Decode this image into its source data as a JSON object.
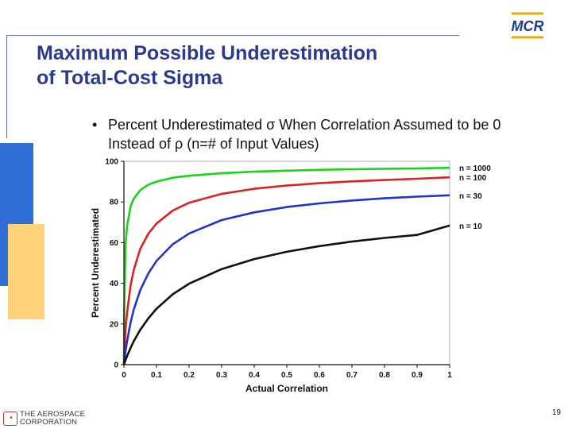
{
  "slide": {
    "title_line1": "Maximum Possible Underestimation",
    "title_line2": "of Total-Cost Sigma",
    "bullet_symbol": "•",
    "bullet_text": "Percent Underestimated σ When Correlation Assumed to be 0 Instead of ρ (n=# of Input Values)",
    "logo_text": "MCR",
    "footer_org_line1": "THE AEROSPACE",
    "footer_org_line2": "CORPORATION",
    "page_number": "19"
  },
  "colors": {
    "title": "#2d3a8c",
    "accent_blue": "#2f6fd6",
    "accent_yellow": "#ffd27a"
  },
  "chart_data": {
    "type": "line",
    "xlabel": "Actual Correlation",
    "ylabel": "Percent Underestimated",
    "xlim": [
      0,
      1
    ],
    "ylim": [
      0,
      100
    ],
    "x_ticks": [
      "0",
      "0.1",
      "0.2",
      "0.3",
      "0.4",
      "0.5",
      "0.6",
      "0.7",
      "0.8",
      "0.9",
      "1"
    ],
    "y_ticks": [
      "0",
      "20",
      "40",
      "60",
      "80",
      "100"
    ],
    "x": [
      0,
      0.001,
      0.005,
      0.01,
      0.02,
      0.03,
      0.05,
      0.075,
      0.1,
      0.15,
      0.2,
      0.3,
      0.4,
      0.5,
      0.6,
      0.7,
      0.8,
      0.9,
      1.0
    ],
    "series": [
      {
        "name": "n = 1000",
        "color": "#19d419",
        "values": [
          0,
          26.9,
          59.1,
          68.4,
          77.6,
          81.6,
          85.8,
          88.5,
          90.0,
          91.9,
          92.9,
          94.1,
          94.9,
          95.4,
          95.8,
          96.1,
          96.3,
          96.5,
          96.8
        ]
      },
      {
        "name": "n = 100",
        "color": "#e02020",
        "values": [
          0,
          4.4,
          17.5,
          26.0,
          38.5,
          46.5,
          56.9,
          64.4,
          69.4,
          75.8,
          79.6,
          84.0,
          86.5,
          88.1,
          89.2,
          90.1,
          90.8,
          91.4,
          92.1
        ]
      },
      {
        "name": "n = 30",
        "color": "#2233cc",
        "values": [
          0,
          1.4,
          6.6,
          11.8,
          20.4,
          27.0,
          36.6,
          44.9,
          51.0,
          59.2,
          64.5,
          71.1,
          74.9,
          77.5,
          79.3,
          80.7,
          81.8,
          82.6,
          83.3
        ]
      },
      {
        "name": "n = 10",
        "color": "#111111",
        "values": [
          0,
          0.4,
          2.2,
          4.3,
          8.1,
          11.5,
          17.1,
          22.8,
          27.5,
          34.6,
          39.8,
          47.0,
          51.9,
          55.5,
          58.3,
          60.5,
          62.3,
          63.8,
          68.4
        ]
      }
    ],
    "legend_placement": "right"
  }
}
